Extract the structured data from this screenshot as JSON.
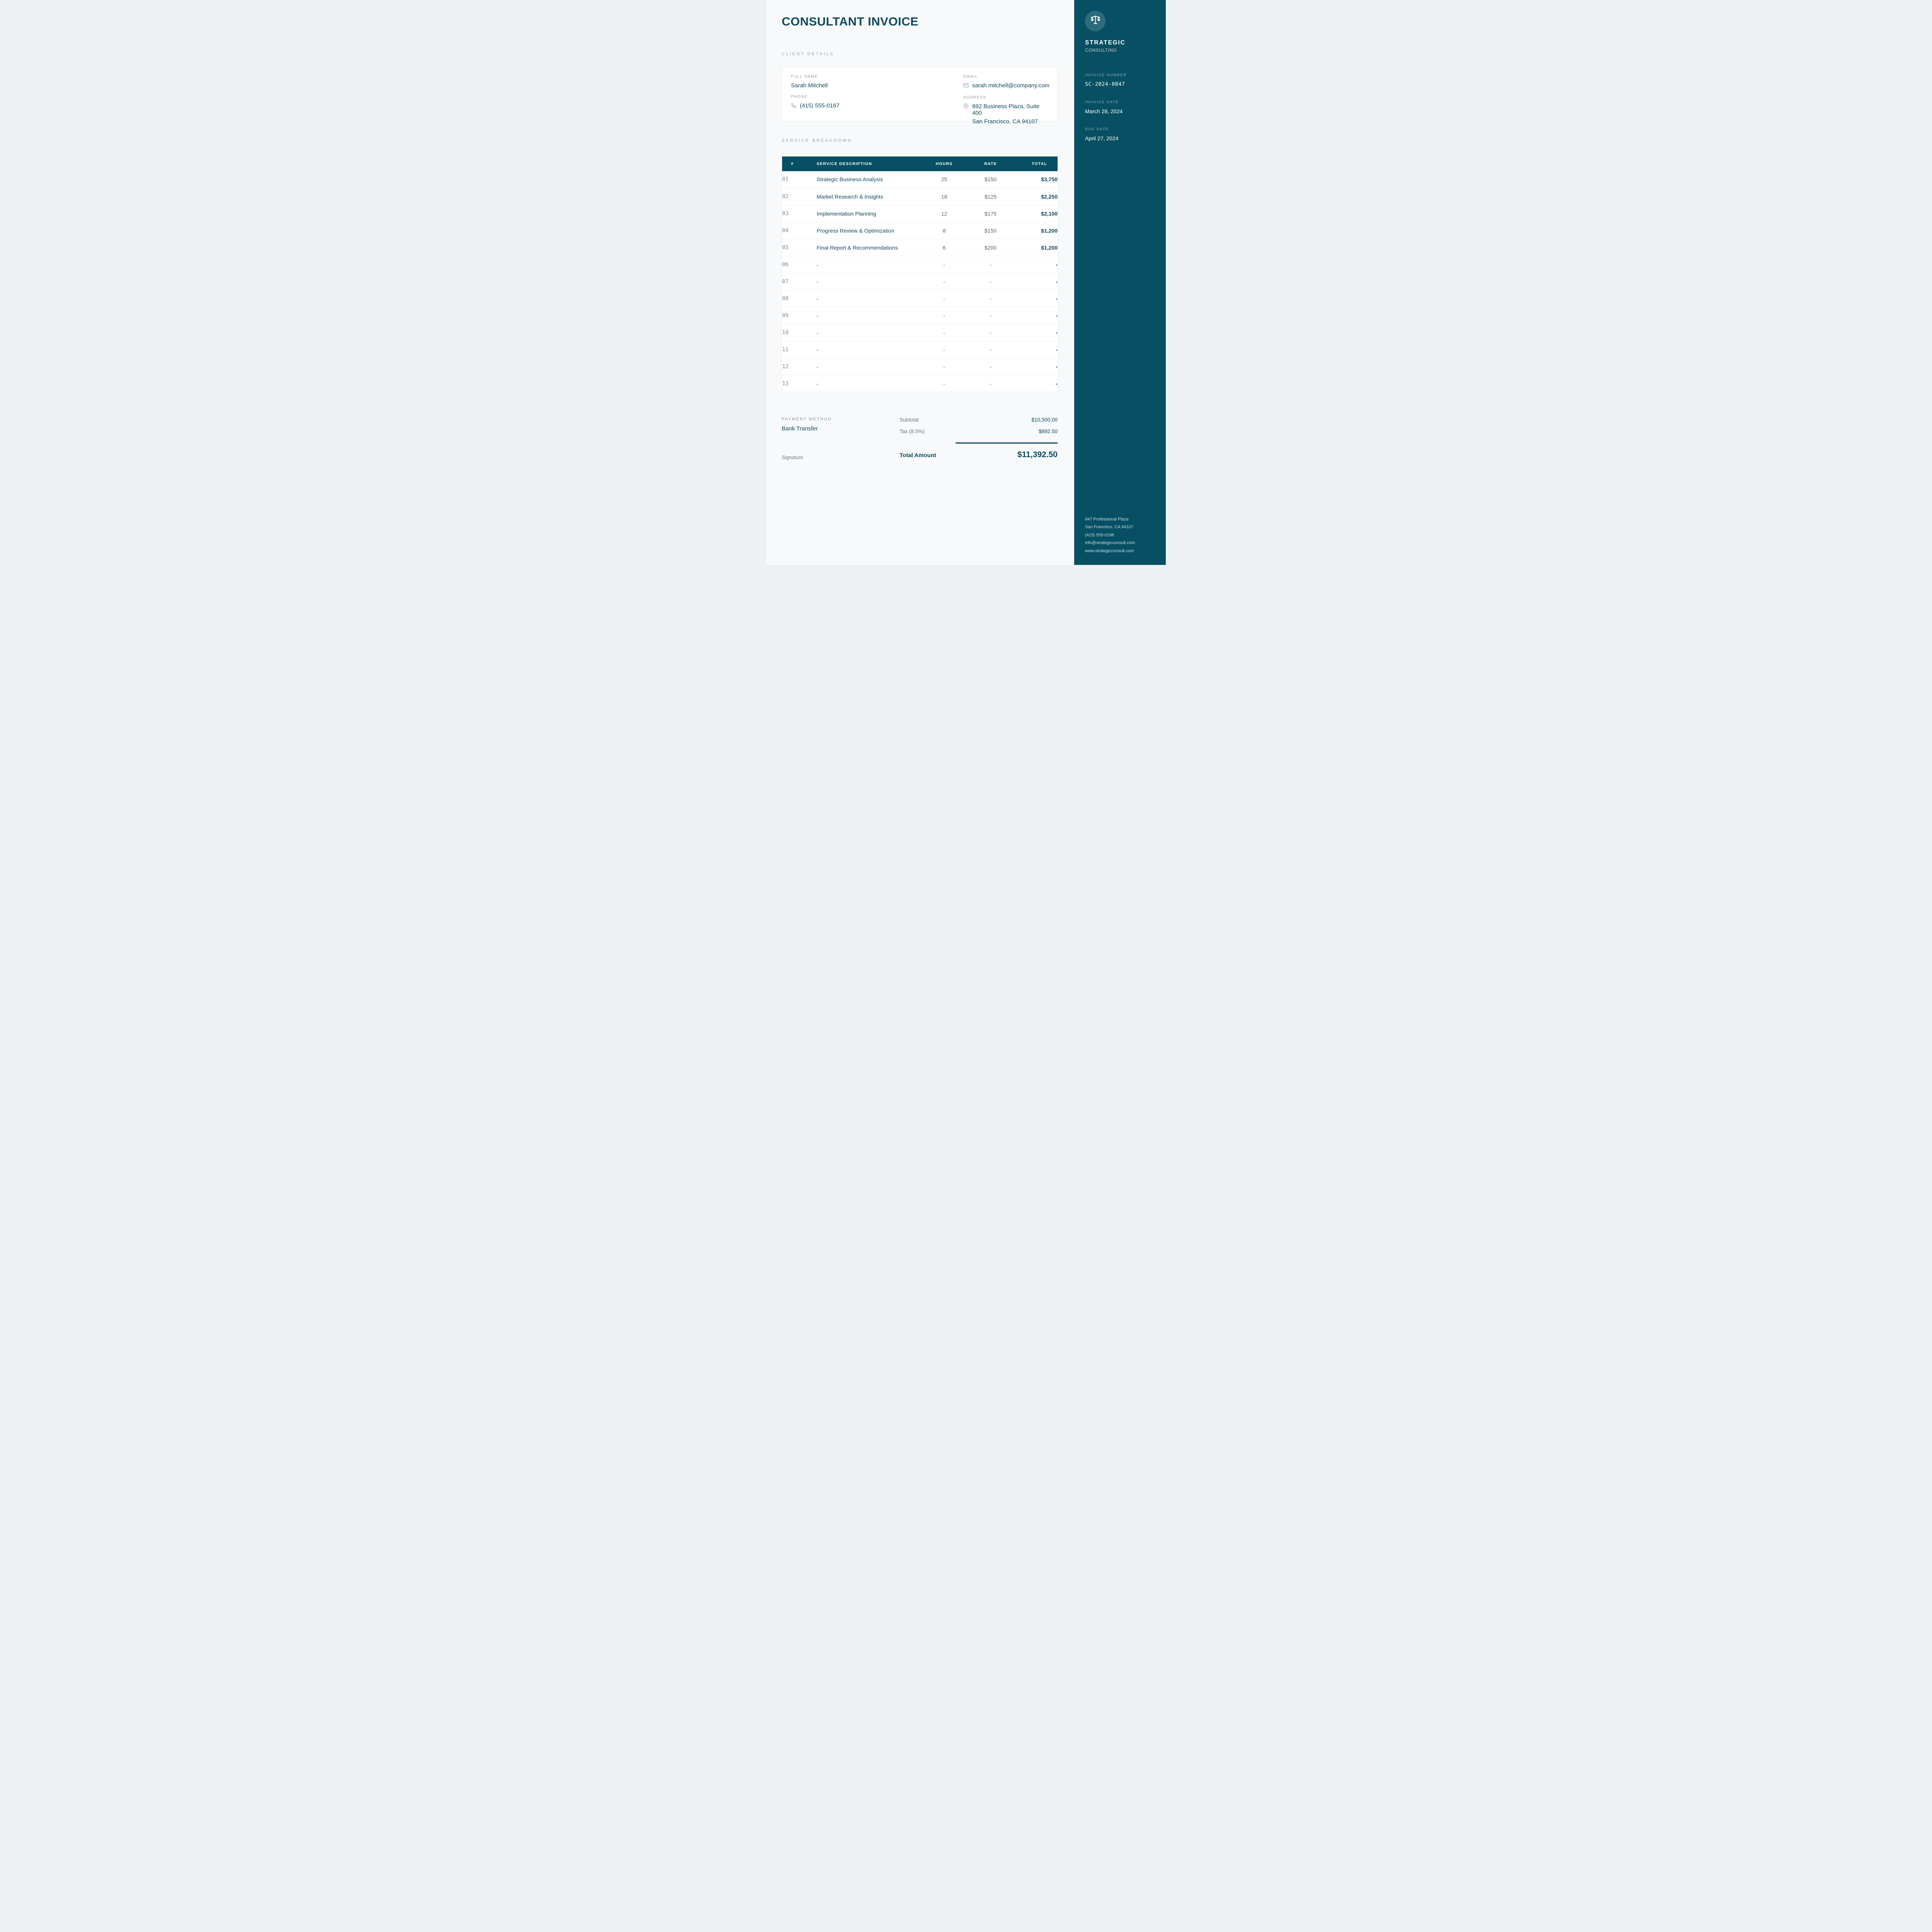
{
  "page": {
    "title": "CONSULTANT INVOICE"
  },
  "client_details": {
    "section_label": "CLIENT DETAILS",
    "full_name": {
      "label": "FULL NAME",
      "value": "Sarah Mitchell"
    },
    "phone": {
      "label": "PHONE",
      "value": "(415) 555-0167"
    },
    "email": {
      "label": "EMAIL",
      "value": "sarah.mitchell@company.com"
    },
    "address": {
      "label": "ADDRESS",
      "line1": "892 Business Plaza, Suite 400",
      "line2": "San Francisco, CA 94107"
    }
  },
  "service_breakdown": {
    "section_label": "SERVICE BREAKDOWN",
    "columns": [
      "#",
      "SERVICE DESCRIPTION",
      "HOURS",
      "RATE",
      "TOTAL"
    ],
    "rows": [
      {
        "num": "01",
        "description": "Strategic Business Analysis",
        "hours": "25",
        "rate": "$150",
        "total": "$3,750"
      },
      {
        "num": "02",
        "description": "Market Research & Insights",
        "hours": "18",
        "rate": "$125",
        "total": "$2,250"
      },
      {
        "num": "03",
        "description": "Implementation Planning",
        "hours": "12",
        "rate": "$175",
        "total": "$2,100"
      },
      {
        "num": "04",
        "description": "Progress Review & Optimization",
        "hours": "8",
        "rate": "$150",
        "total": "$1,200"
      },
      {
        "num": "05",
        "description": "Final Report & Recommendations",
        "hours": "6",
        "rate": "$200",
        "total": "$1,200"
      },
      {
        "num": "06",
        "description": "-",
        "hours": "-",
        "rate": "-",
        "total": "-"
      },
      {
        "num": "07",
        "description": "-",
        "hours": "-",
        "rate": "-",
        "total": "-"
      },
      {
        "num": "08",
        "description": "-",
        "hours": "-",
        "rate": "-",
        "total": "-"
      },
      {
        "num": "09",
        "description": "-",
        "hours": "-",
        "rate": "-",
        "total": "-"
      },
      {
        "num": "10",
        "description": "-",
        "hours": "-",
        "rate": "-",
        "total": "-"
      },
      {
        "num": "11",
        "description": "-",
        "hours": "-",
        "rate": "-",
        "total": "-"
      },
      {
        "num": "12",
        "description": "-",
        "hours": "-",
        "rate": "-",
        "total": "-"
      },
      {
        "num": "13",
        "description": "-",
        "hours": "-",
        "rate": "-",
        "total": "-"
      }
    ]
  },
  "payment": {
    "label": "PAYMENT METHOD",
    "method": "Bank Transfer",
    "signature_label": "Signature"
  },
  "totals": {
    "subtotal_label": "Subtotal",
    "subtotal_value": "$10,500.00",
    "tax_label": "Tax (8.5%)",
    "tax_value": "$892.50",
    "total_label": "Total Amount",
    "total_value": "$11,392.50"
  },
  "sidebar": {
    "logo_icon": "scales-icon",
    "company_name": "STRATEGIC",
    "company_sub": "CONSULTING",
    "invoice_number": {
      "label": "INVOICE NUMBER",
      "value": "SC-2024-0847"
    },
    "invoice_date": {
      "label": "INVOICE DATE",
      "value": "March 28, 2024"
    },
    "due_date": {
      "label": "DUE DATE",
      "value": "April 27, 2024"
    },
    "footer": [
      "847 Professional Plaza",
      "San Francisco, CA 94107",
      "(415) 555-0198",
      "info@strategicconsult.com",
      "www.strategicconsult.com"
    ]
  },
  "colors": {
    "sidebar_bg": "#074f63",
    "table_header_bg": "#074f63",
    "accent_text": "#0f4a5e",
    "muted_label": "#9aa3ad",
    "page_bg": "#f7f9fa",
    "card_bg": "#ffffff"
  }
}
